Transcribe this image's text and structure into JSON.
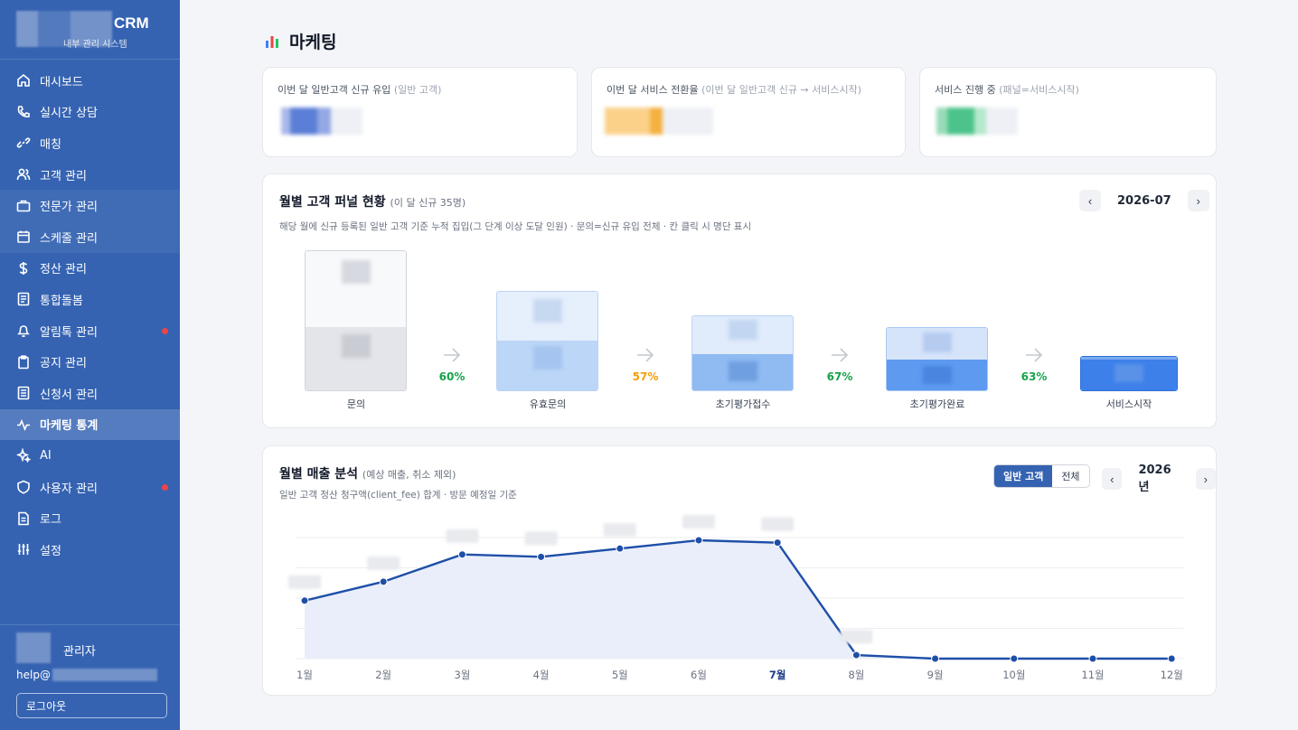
{
  "brand": {
    "name": "CRM",
    "subtitle": "내부 관리 시스템"
  },
  "sidebar": {
    "items": [
      {
        "label": "대시보드",
        "icon": "home-icon",
        "state": "normal",
        "badge": false
      },
      {
        "label": "실시간 상담",
        "icon": "phone-icon",
        "state": "normal",
        "badge": false
      },
      {
        "label": "매칭",
        "icon": "link-icon",
        "state": "normal",
        "badge": false
      },
      {
        "label": "고객 관리",
        "icon": "users-icon",
        "state": "normal",
        "badge": false
      },
      {
        "label": "전문가 관리",
        "icon": "briefcase-icon",
        "state": "dim",
        "badge": false
      },
      {
        "label": "스케줄 관리",
        "icon": "calendar-icon",
        "state": "dim",
        "badge": false
      },
      {
        "label": "정산 관리",
        "icon": "dollar-icon",
        "state": "normal",
        "badge": false
      },
      {
        "label": "통합돌봄",
        "icon": "document-icon",
        "state": "normal",
        "badge": false
      },
      {
        "label": "알림톡 관리",
        "icon": "bell-icon",
        "state": "normal",
        "badge": true
      },
      {
        "label": "공지 관리",
        "icon": "clipboard-icon",
        "state": "normal",
        "badge": false
      },
      {
        "label": "신청서 관리",
        "icon": "list-icon",
        "state": "normal",
        "badge": false
      },
      {
        "label": "마케팅 통계",
        "icon": "activity-icon",
        "state": "active",
        "badge": false
      },
      {
        "label": "AI",
        "icon": "sparkle-icon",
        "state": "normal",
        "badge": false
      },
      {
        "label": "사용자 관리",
        "icon": "shield-icon",
        "state": "normal",
        "badge": true
      },
      {
        "label": "로그",
        "icon": "file-icon",
        "state": "normal",
        "badge": false
      },
      {
        "label": "설정",
        "icon": "sliders-icon",
        "state": "normal",
        "badge": false
      }
    ],
    "user": {
      "name": "관리자",
      "email_prefix": "help@",
      "logout_label": "로그아웃"
    }
  },
  "page": {
    "title": "마케팅"
  },
  "stats": [
    {
      "label": "이번 달 일반고객 신규 유입",
      "sub": "(일반 고객)",
      "color": "#5b7fd6"
    },
    {
      "label": "이번 달 서비스 전환율",
      "sub": "(이번 달 일반고객 신규 → 서비스시작)",
      "color": "#f5b042"
    },
    {
      "label": "서비스 진행 중",
      "sub": "(패널=서비스시작)",
      "color": "#4cc38a"
    }
  ],
  "funnel": {
    "title": "월별 고객 퍼널 현황",
    "title_sub": "(이 달 신규 35명)",
    "description": "해당 월에 신규 등록된 일반 고객 기준 누적 집입(그 단계 이상 도달 인원) · 문의=신규 유입 전체 · 칸 클릭 시 명단 표시",
    "period": "2026-07",
    "stages": [
      {
        "label": "문의"
      },
      {
        "label": "유효문의"
      },
      {
        "label": "초기평가접수"
      },
      {
        "label": "초기평가완료"
      },
      {
        "label": "서비스시작"
      }
    ],
    "conversions": [
      {
        "value": "60%",
        "color": "#16a34a"
      },
      {
        "value": "57%",
        "color": "#f59e0b"
      },
      {
        "value": "67%",
        "color": "#16a34a"
      },
      {
        "value": "63%",
        "color": "#16a34a"
      }
    ]
  },
  "revenue": {
    "title": "월별 매출 분석",
    "title_sub": "(예상 매출, 취소 제외)",
    "description": "일반 고객 정산 청구액(client_fee) 합계 · 방문 예정일 기준",
    "toggle": {
      "on": "일반 고객",
      "off": "전체"
    },
    "year": "2026년",
    "current_month_index": 6
  },
  "chart_data": {
    "type": "area",
    "categories": [
      "1월",
      "2월",
      "3월",
      "4월",
      "5월",
      "6월",
      "7월",
      "8월",
      "9월",
      "10월",
      "11월",
      "12월"
    ],
    "series": [
      {
        "values": [
          0.49,
          0.65,
          0.88,
          0.86,
          0.93,
          1.0,
          0.98,
          0.03,
          0.0,
          0.0,
          0.0,
          0.0
        ]
      }
    ],
    "grid": true,
    "line_color": "#1e4fa8",
    "fill_color": "#e9eefa"
  }
}
